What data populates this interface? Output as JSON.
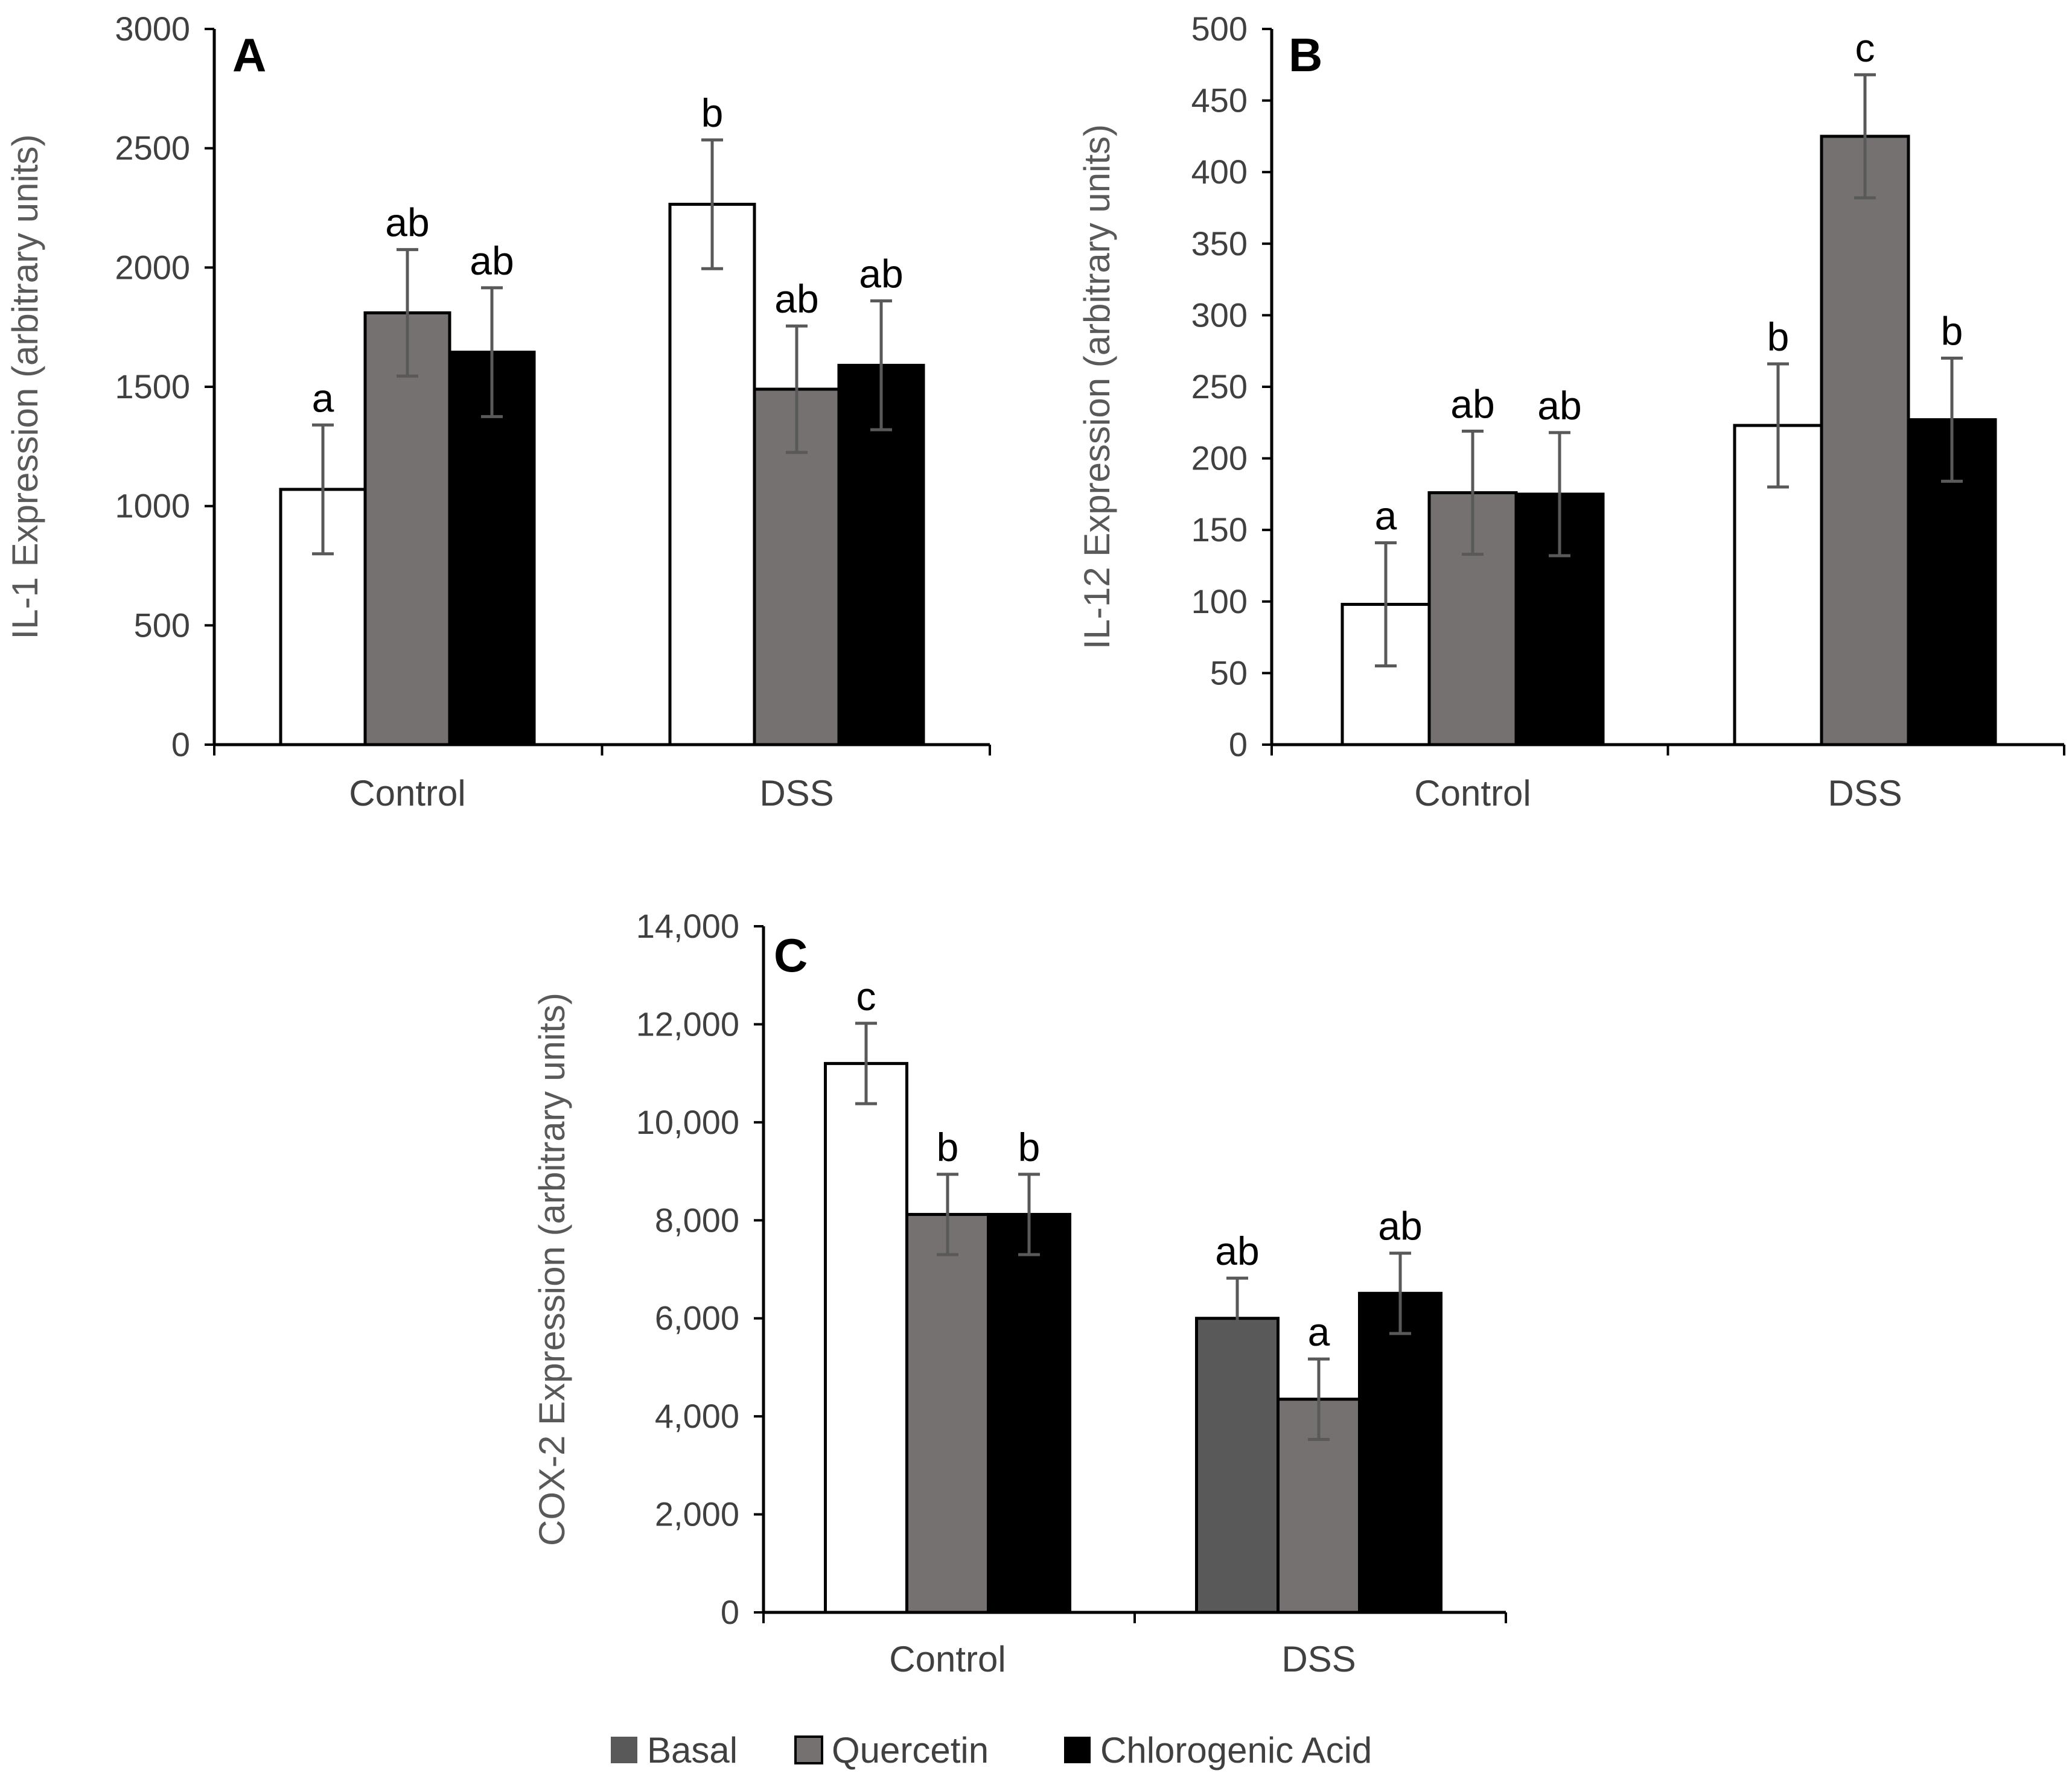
{
  "legend": {
    "items": [
      {
        "label": "Basal",
        "color": "#595959"
      },
      {
        "label": "Quercetin",
        "color": "#767171"
      },
      {
        "label": "Chlorogenic Acid",
        "color": "#000000"
      }
    ]
  },
  "colors": {
    "basal_fill": "#ffffff",
    "basal_fill_panel_c_dss": "#595959",
    "quercetin": "#767171",
    "chlorogenic": "#000000",
    "error_bar": "#595959",
    "axis": "#000000"
  },
  "chart_data": [
    {
      "panel": "A",
      "type": "bar",
      "categories": [
        "Control",
        "DSS"
      ],
      "ylabel": "IL-1 Expression (arbitrary units)",
      "ylim": [
        0,
        3000
      ],
      "yticks": [
        0,
        500,
        1000,
        1500,
        2000,
        2500,
        3000
      ],
      "ytick_labels": [
        "0",
        "500",
        "1000",
        "1500",
        "2000",
        "2500",
        "3000"
      ],
      "series": [
        {
          "name": "Basal",
          "values": [
            1070,
            2265
          ],
          "errors": [
            270,
            270
          ],
          "letters": [
            "a",
            "b"
          ]
        },
        {
          "name": "Quercetin",
          "values": [
            1810,
            1490
          ],
          "errors": [
            265,
            265
          ],
          "letters": [
            "ab",
            "ab"
          ]
        },
        {
          "name": "Chlorogenic Acid",
          "values": [
            1645,
            1590
          ],
          "errors": [
            270,
            270
          ],
          "letters": [
            "ab",
            "ab"
          ]
        }
      ]
    },
    {
      "panel": "B",
      "type": "bar",
      "categories": [
        "Control",
        "DSS"
      ],
      "ylabel": "IL-12 Expression (arbitrary units)",
      "ylim": [
        0,
        500
      ],
      "yticks": [
        0,
        50,
        100,
        150,
        200,
        250,
        300,
        350,
        400,
        450,
        500
      ],
      "ytick_labels": [
        "0",
        "50",
        "100",
        "150",
        "200",
        "250",
        "300",
        "350",
        "400",
        "450",
        "500"
      ],
      "series": [
        {
          "name": "Basal",
          "values": [
            98,
            223
          ],
          "errors": [
            43,
            43
          ],
          "letters": [
            "a",
            "b"
          ]
        },
        {
          "name": "Quercetin",
          "values": [
            176,
            425
          ],
          "errors": [
            43,
            43
          ],
          "letters": [
            "ab",
            "c"
          ]
        },
        {
          "name": "Chlorogenic Acid",
          "values": [
            175,
            227
          ],
          "errors": [
            43,
            43
          ],
          "letters": [
            "ab",
            "b"
          ]
        }
      ]
    },
    {
      "panel": "C",
      "type": "bar",
      "categories": [
        "Control",
        "DSS"
      ],
      "ylabel": "COX-2 Expression (arbitrary units)",
      "ylim": [
        0,
        14000
      ],
      "yticks": [
        0,
        2000,
        4000,
        6000,
        8000,
        10000,
        12000,
        14000
      ],
      "ytick_labels": [
        "0",
        "2,000",
        "4,000",
        "6,000",
        "8,000",
        "10,000",
        "12,000",
        "14,000"
      ],
      "series": [
        {
          "name": "Basal",
          "values": [
            11200,
            6000
          ],
          "errors": [
            820,
            820
          ],
          "letters": [
            "c",
            "ab"
          ]
        },
        {
          "name": "Quercetin",
          "values": [
            8120,
            4350
          ],
          "errors": [
            820,
            820
          ],
          "letters": [
            "b",
            "a"
          ]
        },
        {
          "name": "Chlorogenic Acid",
          "values": [
            8120,
            6510
          ],
          "errors": [
            820,
            820
          ],
          "letters": [
            "b",
            "ab"
          ]
        }
      ]
    }
  ]
}
